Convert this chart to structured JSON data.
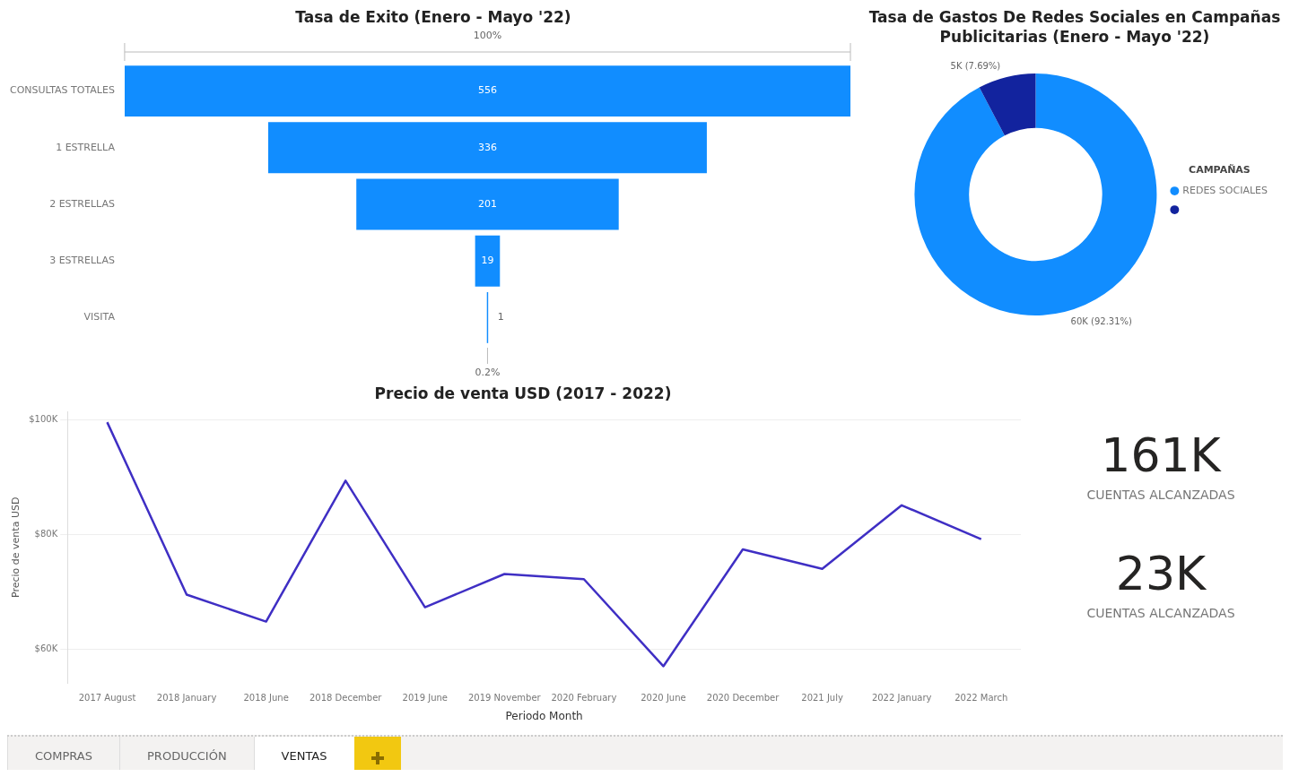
{
  "chart_data": [
    {
      "type": "other",
      "title": "Tasa de Exito (Enero - Mayo '22)",
      "categories": [
        "CONSULTAS TOTALES",
        "1 ESTRELLA",
        "2 ESTRELLAS",
        "3 ESTRELLAS",
        "VISITA"
      ],
      "values": [
        556,
        336,
        201,
        19,
        1
      ],
      "color": "#118dff",
      "data_labels": true,
      "annotations": [
        "100%",
        "0.2%"
      ]
    },
    {
      "type": "donut",
      "title": "Tasa de Gastos De Redes Sociales en Campañas Publicitarias (Enero - Mayo '22)",
      "categories": [
        "REDES SOCIALES",
        null
      ],
      "values": [
        92.31,
        7.69
      ],
      "colors": [
        "#118dff",
        "#12239e"
      ],
      "value_labels": [
        "60K (92.31%)",
        "5K (7.69%)"
      ],
      "legend": "right",
      "legend_title": "CAMPAÑAS"
    },
    {
      "type": "line",
      "title": "Precio de venta USD (2017 - 2022)",
      "xlabel": "Periodo Month",
      "ylabel": "Precio de venta USD",
      "categories": [
        "2017 August",
        "2018 January",
        "2018 June",
        "2018 December",
        "2019 June",
        "2019 November",
        "2020 February",
        "2020 June",
        "2020 December",
        "2021 July",
        "2022 January",
        "2022 March"
      ],
      "values": [
        99.6,
        69.5,
        64.8,
        89.4,
        67.3,
        73.1,
        72.2,
        57.0,
        77.4,
        74.0,
        85.1,
        79.2
      ],
      "color": "#3f2fc4",
      "ylim": [
        54,
        101.5
      ],
      "yticks": [
        {
          "value": 60,
          "label": "$60K"
        },
        {
          "value": 80,
          "label": "$80K"
        },
        {
          "value": 100,
          "label": "$100K"
        }
      ],
      "grid": "y"
    },
    {
      "type": "other",
      "annotations": [
        "161K",
        "CUENTAS ALCANZADAS",
        "23K",
        "CUENTAS ALCANZADAS"
      ]
    },
    {
      "type": "other",
      "annotations": [
        "COMPRAS",
        "PRODUCCIÓN",
        "VENTAS"
      ]
    }
  ]
}
